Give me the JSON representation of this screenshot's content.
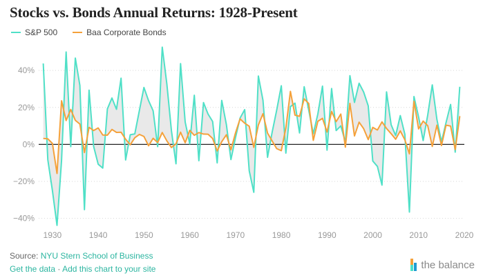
{
  "title": "Stocks vs. Bonds Annual Returns: 1928-Present",
  "footer": {
    "source_prefix": "Source: ",
    "source_link": "NYU Stern School of Business",
    "get_data": "Get the data",
    "separator": " · ",
    "add_chart": "Add this chart to your site"
  },
  "brand": {
    "name": "the balance"
  },
  "colors": {
    "sp500": "#4fe0c7",
    "bonds": "#f5a13a",
    "fill": "#e9e9e9",
    "zero": "#222222",
    "grid": "#d6d6d6"
  },
  "chart_data": {
    "type": "line",
    "title": "Stocks vs. Bonds Annual Returns: 1928-Present",
    "xlabel": "",
    "ylabel": "",
    "xlim": [
      1927,
      2020
    ],
    "ylim": [
      -45,
      52
    ],
    "y_ticks": [
      -40,
      -20,
      0,
      20,
      40
    ],
    "y_tick_labels": [
      "−40%",
      "−20%",
      "0%",
      "20%",
      "40%"
    ],
    "x_ticks": [
      1930,
      1940,
      1950,
      1960,
      1970,
      1980,
      1990,
      2000,
      2010,
      2020
    ],
    "x_tick_labels": [
      "1930",
      "1940",
      "1950",
      "1960",
      "1970",
      "1980",
      "1990",
      "2000",
      "2010",
      "2020"
    ],
    "legend_position": "top-left",
    "years": [
      1928,
      1929,
      1930,
      1931,
      1932,
      1933,
      1934,
      1935,
      1936,
      1937,
      1938,
      1939,
      1940,
      1941,
      1942,
      1943,
      1944,
      1945,
      1946,
      1947,
      1948,
      1949,
      1950,
      1951,
      1952,
      1953,
      1954,
      1955,
      1956,
      1957,
      1958,
      1959,
      1960,
      1961,
      1962,
      1963,
      1964,
      1965,
      1966,
      1967,
      1968,
      1969,
      1970,
      1971,
      1972,
      1973,
      1974,
      1975,
      1976,
      1977,
      1978,
      1979,
      1980,
      1981,
      1982,
      1983,
      1984,
      1985,
      1986,
      1987,
      1988,
      1989,
      1990,
      1991,
      1992,
      1993,
      1994,
      1995,
      1996,
      1997,
      1998,
      1999,
      2000,
      2001,
      2002,
      2003,
      2004,
      2005,
      2006,
      2007,
      2008,
      2009,
      2010,
      2011,
      2012,
      2013,
      2014,
      2015,
      2016,
      2017,
      2018,
      2019
    ],
    "series": [
      {
        "name": "S&P 500",
        "values": [
          43.8,
          -8.3,
          -25.1,
          -43.8,
          -8.6,
          50.0,
          -1.2,
          46.7,
          31.9,
          -35.3,
          29.3,
          -1.1,
          -10.7,
          -12.8,
          19.2,
          25.1,
          19.0,
          35.8,
          -8.4,
          5.2,
          5.7,
          18.3,
          30.8,
          23.7,
          18.2,
          -1.2,
          52.6,
          32.6,
          7.4,
          -10.5,
          43.7,
          12.1,
          0.3,
          26.6,
          -8.8,
          22.6,
          16.4,
          12.4,
          -10.0,
          23.8,
          10.8,
          -8.2,
          3.6,
          14.2,
          18.8,
          -14.3,
          -25.9,
          37.0,
          23.8,
          -7.0,
          6.5,
          18.5,
          31.7,
          -4.7,
          20.4,
          22.3,
          6.2,
          31.2,
          18.5,
          5.8,
          16.5,
          31.5,
          -3.1,
          30.2,
          7.5,
          10.0,
          1.3,
          37.2,
          22.7,
          33.1,
          28.3,
          20.9,
          -9.0,
          -11.9,
          -22.0,
          28.4,
          10.7,
          4.8,
          15.6,
          5.5,
          -36.6,
          25.9,
          14.8,
          2.1,
          15.9,
          32.2,
          13.5,
          1.4,
          11.8,
          21.6,
          -4.2,
          31.2
        ]
      },
      {
        "name": "Baa Corporate Bonds",
        "values": [
          3.2,
          3.0,
          0.5,
          -15.7,
          23.6,
          12.9,
          18.9,
          13.0,
          11.0,
          -4.4,
          9.2,
          7.5,
          8.9,
          5.1,
          5.0,
          8.1,
          6.5,
          6.6,
          2.8,
          -0.2,
          3.6,
          5.4,
          4.3,
          -0.7,
          3.3,
          1.0,
          6.4,
          1.9,
          -1.7,
          0.3,
          6.6,
          0.9,
          7.6,
          4.9,
          6.4,
          5.6,
          5.5,
          3.2,
          -3.5,
          1.5,
          5.2,
          -2.9,
          6.2,
          13.8,
          11.5,
          9.8,
          -1.6,
          10.5,
          16.6,
          6.1,
          1.9,
          -2.3,
          -3.4,
          8.9,
          28.7,
          15.8,
          15.2,
          24.6,
          22.1,
          2.2,
          12.5,
          14.1,
          6.7,
          17.8,
          12.3,
          16.4,
          -1.5,
          22.2,
          4.6,
          12.0,
          8.5,
          2.6,
          9.2,
          7.8,
          12.2,
          8.6,
          5.8,
          2.8,
          7.3,
          2.5,
          -5.1,
          23.3,
          8.4,
          12.6,
          10.1,
          -1.1,
          10.4,
          -0.6,
          10.4,
          9.9,
          -2.8,
          15.3
        ]
      }
    ]
  }
}
